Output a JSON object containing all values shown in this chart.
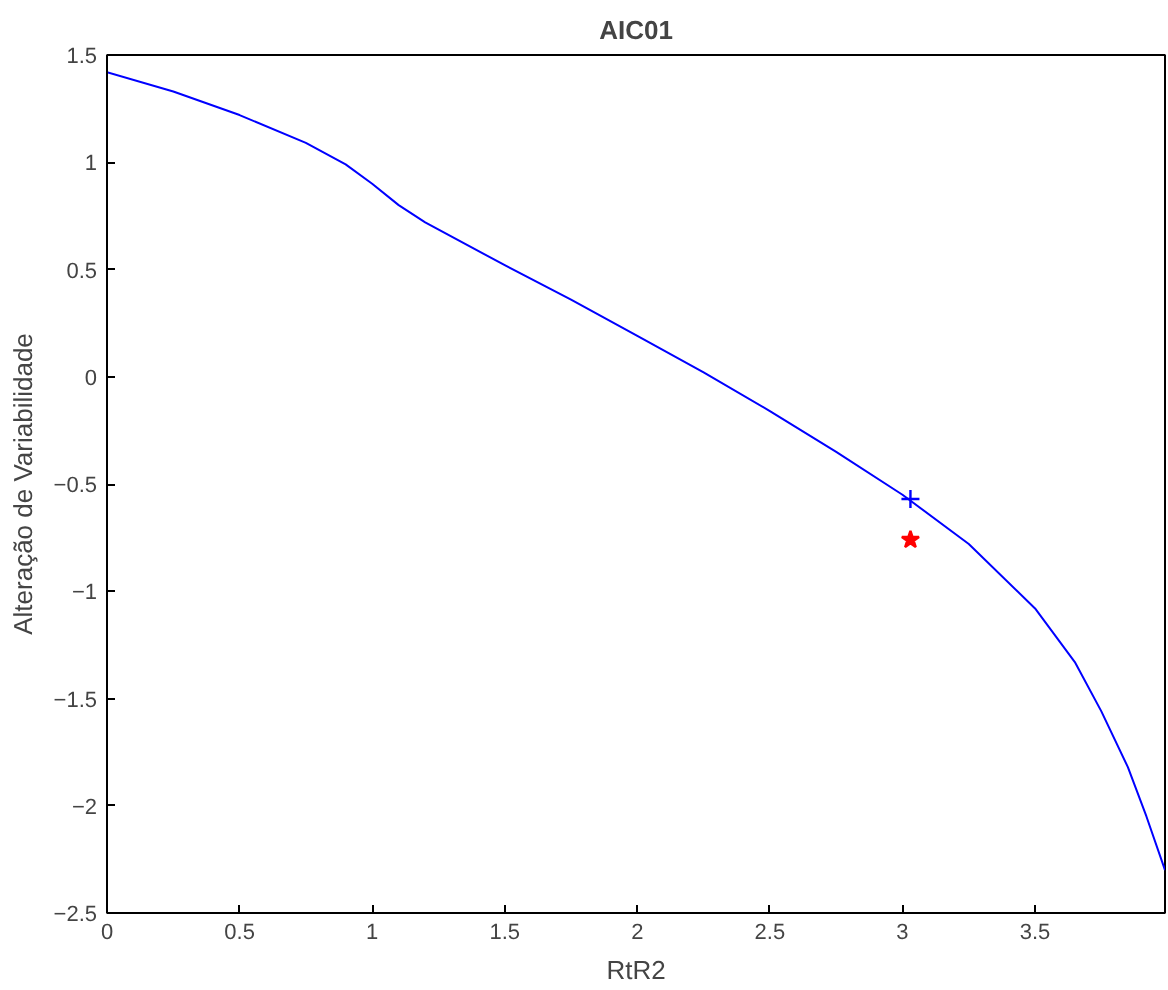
{
  "chart_data": {
    "type": "line",
    "title": "AIC01",
    "xlabel": "RtR2",
    "ylabel": "Alteração de Variabilidade",
    "xlim": [
      0,
      3.99
    ],
    "ylim": [
      -2.5,
      1.5
    ],
    "xticks": [
      0,
      0.5,
      1,
      1.5,
      2,
      2.5,
      3,
      3.5
    ],
    "yticks": [
      -2.5,
      -2,
      -1.5,
      -1,
      -0.5,
      0,
      0.5,
      1,
      1.5
    ],
    "grid": false,
    "series": [
      {
        "color": "#0000ff",
        "line_style": "solid",
        "x": [
          0,
          0.25,
          0.5,
          0.75,
          0.9,
          1.0,
          1.1,
          1.2,
          1.5,
          1.75,
          2.0,
          2.25,
          2.5,
          2.75,
          3.0,
          3.25,
          3.5,
          3.65,
          3.75,
          3.85,
          3.92,
          3.99
        ],
        "values": [
          1.42,
          1.33,
          1.22,
          1.09,
          0.99,
          0.9,
          0.8,
          0.72,
          0.52,
          0.36,
          0.19,
          0.02,
          -0.16,
          -0.35,
          -0.55,
          -0.78,
          -1.08,
          -1.33,
          -1.56,
          -1.82,
          -2.05,
          -2.3
        ]
      },
      {
        "type": "scatter",
        "color": "#0000ff",
        "marker": "cross",
        "x": [
          3.03
        ],
        "values": [
          -0.57
        ]
      },
      {
        "type": "scatter",
        "color": "#ff0000",
        "marker": "star",
        "x": [
          3.03
        ],
        "values": [
          -0.76
        ]
      }
    ]
  }
}
